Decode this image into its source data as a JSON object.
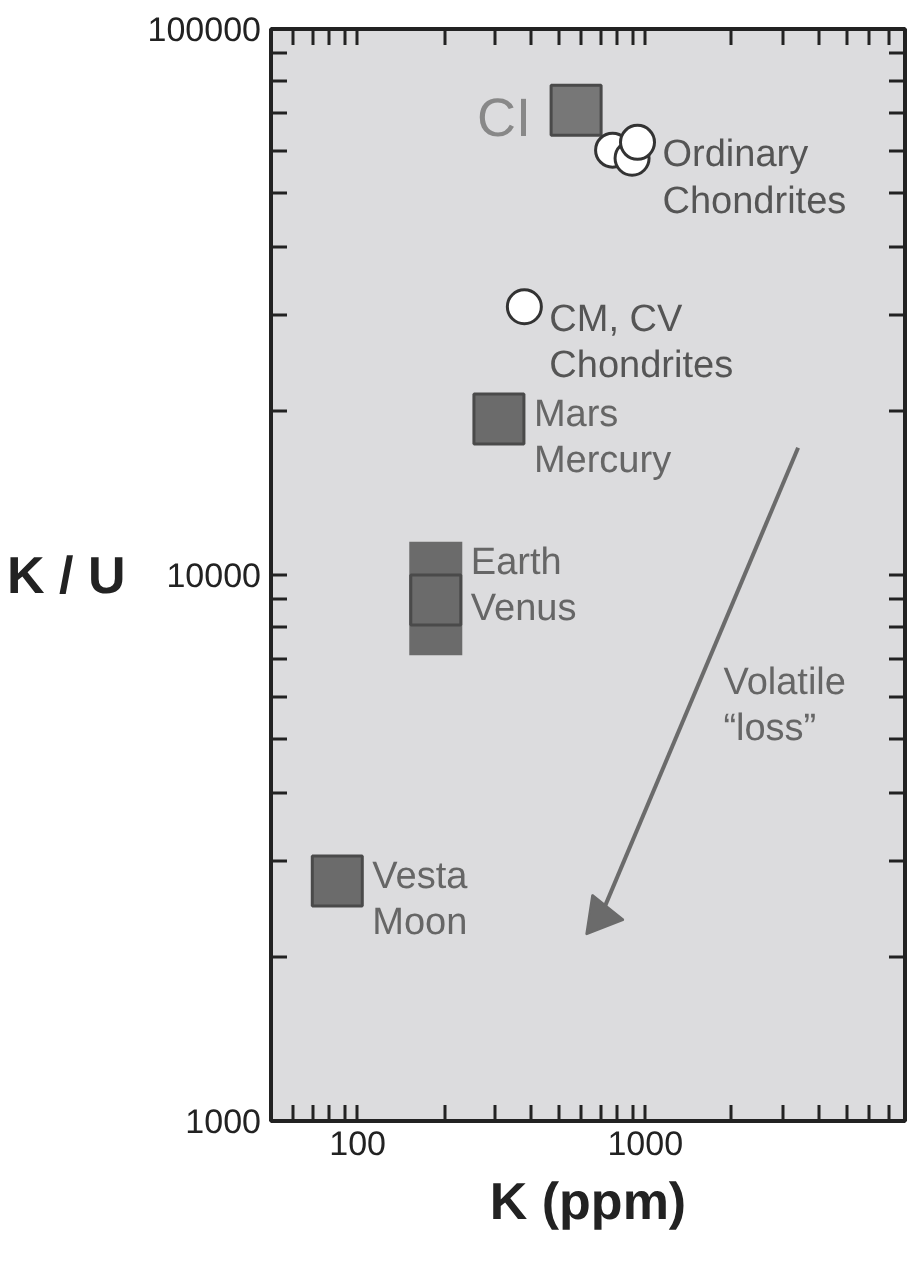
{
  "chart_data": {
    "type": "scatter",
    "xlabel": "K (ppm)",
    "ylabel": "K / U",
    "log": "xy",
    "grid": false,
    "xlim": [
      50,
      8000
    ],
    "ylim": [
      1000,
      100000
    ],
    "xticks": [
      {
        "value": 60,
        "label": null
      },
      {
        "value": 70,
        "label": null
      },
      {
        "value": 80,
        "label": null
      },
      {
        "value": 90,
        "label": null
      },
      100,
      {
        "value": 200,
        "label": null
      },
      {
        "value": 300,
        "label": null
      },
      {
        "value": 400,
        "label": null
      },
      {
        "value": 500,
        "label": null
      },
      {
        "value": 600,
        "label": null
      },
      {
        "value": 700,
        "label": null
      },
      {
        "value": 800,
        "label": null
      },
      {
        "value": 900,
        "label": null
      },
      1000,
      {
        "value": 2000,
        "label": null
      },
      {
        "value": 3000,
        "label": null
      },
      {
        "value": 4000,
        "label": null
      },
      {
        "value": 5000,
        "label": null
      },
      {
        "value": 6000,
        "label": null
      },
      {
        "value": 7000,
        "label": null
      },
      {
        "value": 8000,
        "label": null
      }
    ],
    "yticks": [
      1000,
      {
        "value": 2000,
        "label": null
      },
      {
        "value": 3000,
        "label": null
      },
      {
        "value": 4000,
        "label": null
      },
      {
        "value": 5000,
        "label": null
      },
      {
        "value": 6000,
        "label": null
      },
      {
        "value": 7000,
        "label": null
      },
      {
        "value": 8000,
        "label": null
      },
      {
        "value": 9000,
        "label": null
      },
      10000,
      {
        "value": 20000,
        "label": null
      },
      {
        "value": 30000,
        "label": null
      },
      {
        "value": 40000,
        "label": null
      },
      {
        "value": 50000,
        "label": null
      },
      {
        "value": 60000,
        "label": null
      },
      {
        "value": 70000,
        "label": null
      },
      {
        "value": 80000,
        "label": null
      },
      {
        "value": 90000,
        "label": null
      },
      100000
    ],
    "series": [
      {
        "name": "CI",
        "marker": "square",
        "color": "#777777",
        "x": [
          575
        ],
        "values": [
          71000
        ]
      },
      {
        "marker": "circle",
        "color": "#ffffff",
        "x": [
          770,
          900,
          940
        ],
        "values": [
          60000,
          58000,
          62000
        ]
      },
      {
        "marker": "circle",
        "color": "#ffffff",
        "x": [
          380
        ],
        "values": [
          31000
        ]
      },
      {
        "name": "Mars\nMercury",
        "marker": "square",
        "color": "#6b6b6b",
        "x": [
          310
        ],
        "values": [
          19300
        ]
      },
      {
        "name": "Earth\nVenus",
        "marker": "square",
        "color": "#6b6b6b",
        "x": [
          187
        ],
        "values": [
          9000
        ],
        "errors": [
          [
            7130,
            11500
          ]
        ]
      },
      {
        "name": "Vesta\nMoon",
        "marker": "square",
        "color": "#6b6b6b",
        "x": [
          85
        ],
        "values": [
          2750
        ]
      },
      {
        "name": "Volatile\n“loss”",
        "type": "line",
        "color": "#6b6b6b",
        "x": [
          3400,
          700
        ],
        "values": [
          17100,
          2370
        ]
      }
    ],
    "annotations": [
      {
        "text": "Ordinary\nChondrites",
        "x": 940,
        "y": 62000
      },
      {
        "text": "CM, CV\nChondrites",
        "x": 380,
        "y": 31000
      }
    ]
  }
}
